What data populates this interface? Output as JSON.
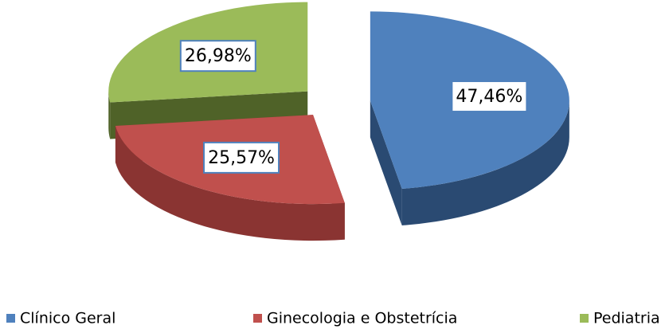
{
  "chart_data": {
    "type": "pie3d",
    "categories": [
      "Clínico Geral",
      "Ginecologia e Obstetrícia",
      "Pediatria"
    ],
    "values": [
      47.46,
      25.57,
      26.98
    ],
    "value_labels": [
      "47,46%",
      "25,57%",
      "26,98%"
    ],
    "colors": [
      "#4f81bd",
      "#c0504d",
      "#9bbb59"
    ],
    "side_colors": [
      "#2a4a72",
      "#8a3432",
      "#4f6228"
    ],
    "legend": "bottom"
  }
}
